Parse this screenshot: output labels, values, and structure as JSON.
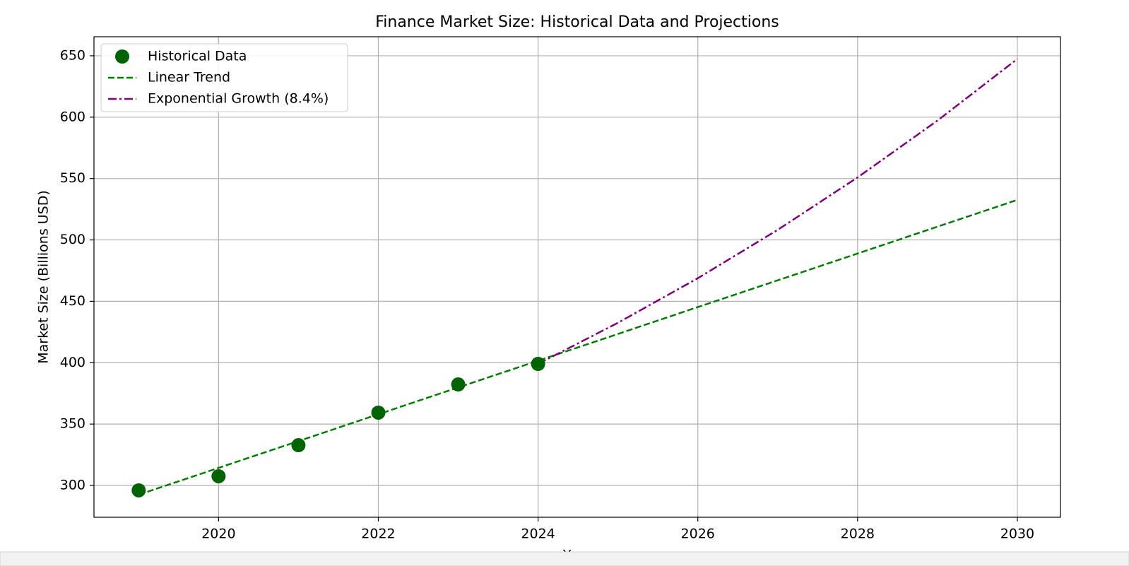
{
  "chart_data": {
    "type": "line",
    "title": "Finance Market Size: Historical Data and Projections",
    "xlabel": "Year",
    "ylabel": "Market Size (Billions USD)",
    "series": [
      {
        "name": "Historical Data",
        "kind": "scatter",
        "color": "#006400",
        "x": [
          2019,
          2020,
          2021,
          2022,
          2023,
          2024
        ],
        "values": [
          296,
          307.5,
          332.8,
          359.3,
          382.3,
          399
        ]
      },
      {
        "name": "Linear Trend",
        "kind": "line",
        "linestyle": "dashed",
        "color": "#008000",
        "x": [
          2019,
          2020,
          2021,
          2022,
          2023,
          2024,
          2025,
          2026,
          2027,
          2028,
          2029,
          2030
        ],
        "values": [
          292.5,
          314.3,
          336.1,
          358.0,
          379.8,
          401.6,
          423.4,
          445.3,
          467.1,
          488.9,
          510.8,
          532.6
        ]
      },
      {
        "name": "Exponential Growth (8.4%)",
        "kind": "line",
        "linestyle": "dashdot",
        "color": "#800080",
        "x": [
          2024,
          2025,
          2026,
          2027,
          2028,
          2029,
          2030
        ],
        "values": [
          399,
          432.5,
          468.8,
          508.2,
          550.9,
          597.2,
          647.4
        ]
      }
    ],
    "xlim": [
      2018.44,
      2030.54
    ],
    "xticks": [
      2020,
      2022,
      2024,
      2026,
      2028,
      2030
    ],
    "ylim": [
      274.1,
      665.5
    ],
    "yticks": [
      300,
      350,
      400,
      450,
      500,
      550,
      600,
      650
    ],
    "grid": true,
    "legend": "upper left"
  }
}
